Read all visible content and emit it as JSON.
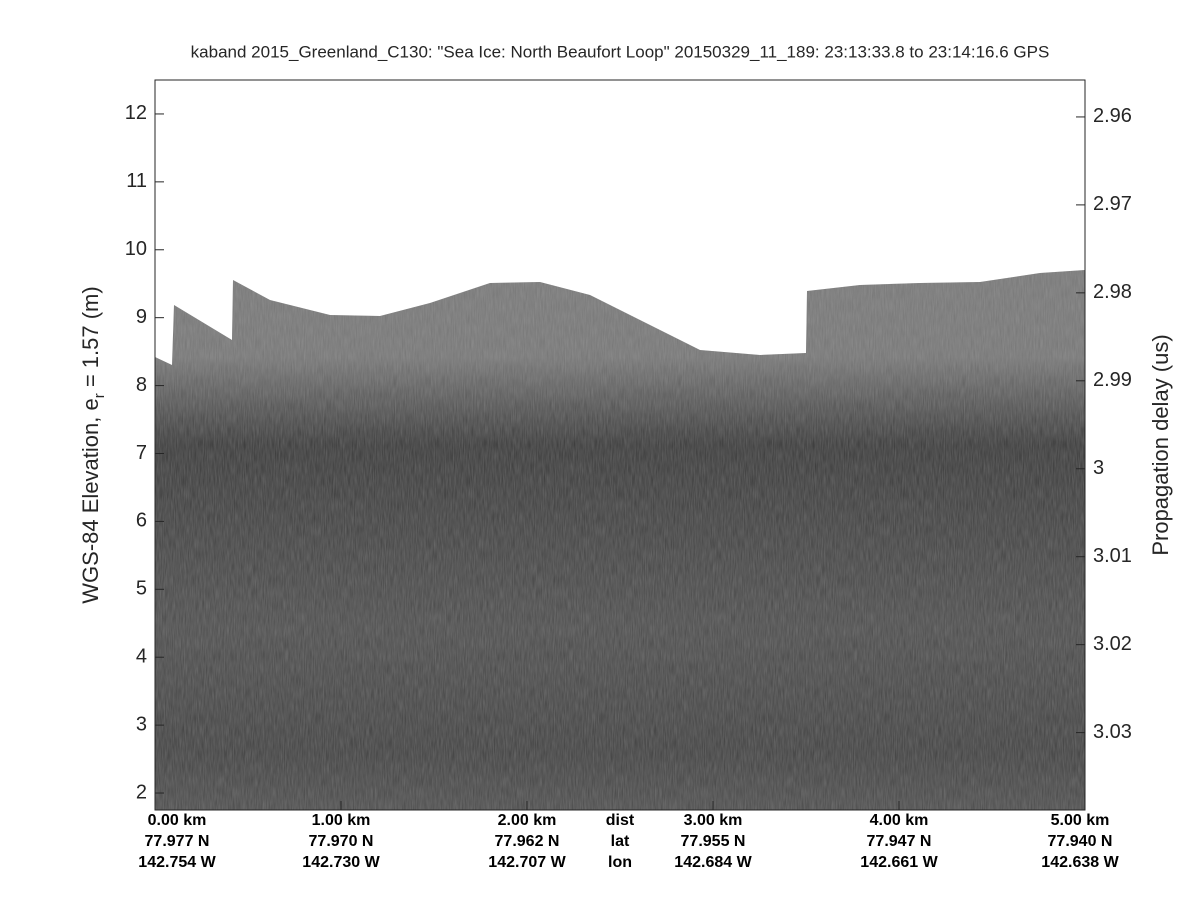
{
  "chart_data": {
    "type": "echogram",
    "title": "kaband 2015_Greenland_C130: \"Sea Ice: North Beaufort Loop\"  20150329_11_189: 23:13:33.8 to 23:14:16.6 GPS",
    "ylabel": [
      "WGS-84 Elevation, e",
      "r",
      " = 1.57 (m)"
    ],
    "y2label": "Propagation delay (us)",
    "xlim": [
      0,
      5
    ],
    "xticks": [
      {
        "value": 0,
        "label": "0.00 km"
      },
      {
        "value": 1,
        "label": "1.00 km"
      },
      {
        "value": 2,
        "label": "2.00 km"
      },
      {
        "value": 3,
        "label": "3.00 km"
      },
      {
        "value": 4,
        "label": "4.00 km"
      },
      {
        "value": 5,
        "label": "5.00 km"
      }
    ],
    "lat_labels": [
      "77.977 N",
      "77.970 N",
      "77.962 N",
      "77.955 N",
      "77.947 N",
      "77.940 N"
    ],
    "lon_labels": [
      "142.754 W",
      "142.730 W",
      "142.707 W",
      "142.684 W",
      "142.661 W",
      "142.638 W"
    ],
    "row_labels": [
      "dist",
      "lat",
      "lon"
    ],
    "ylim": [
      1.75,
      12.5
    ],
    "yticks": [
      2,
      3,
      4,
      5,
      6,
      7,
      8,
      9,
      10,
      11,
      12
    ],
    "y2lim": [
      3.0388,
      2.9558
    ],
    "y2ticks": [
      2.96,
      2.97,
      2.98,
      2.99,
      3,
      3.01,
      3.02,
      3.03
    ]
  }
}
